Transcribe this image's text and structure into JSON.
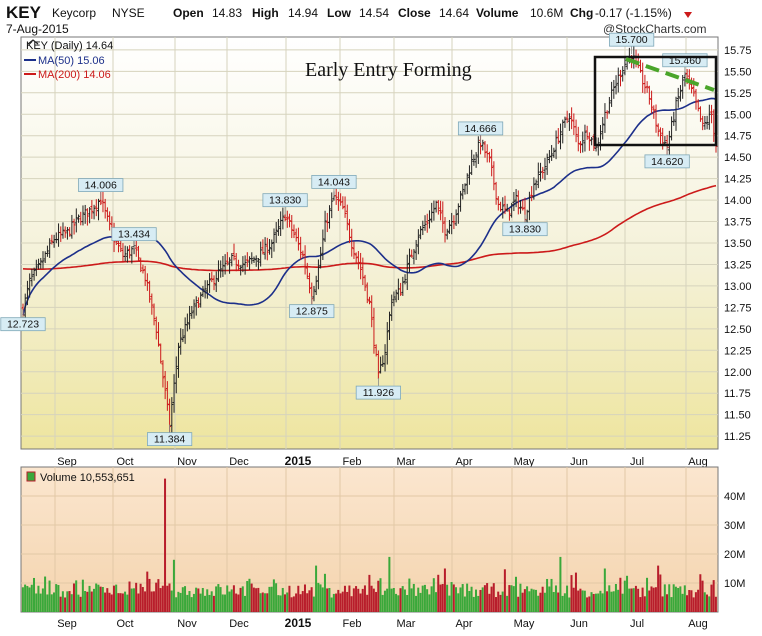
{
  "header": {
    "symbol": "KEY",
    "company": "Keycorp",
    "exchange": "NYSE",
    "date": "7-Aug-2015",
    "open_label": "Open",
    "open": "14.83",
    "high_label": "High",
    "high": "14.94",
    "low_label": "Low",
    "low": "14.54",
    "close_label": "Close",
    "close": "14.64",
    "volume_label": "Volume",
    "volume": "10.6M",
    "chg_label": "Chg",
    "chg": "-0.17 (-1.15%)",
    "watermark": "@StockCharts.com"
  },
  "legend": {
    "price": "KEY (Daily) 14.64",
    "ma50": "MA(50) 15.06",
    "ma200": "MA(200) 14.06",
    "volume": "Volume 10,553,651"
  },
  "annotation": "Early Entry Forming",
  "colors": {
    "up": "#222222",
    "down": "#cc1a1a",
    "ma50": "#1c2f8a",
    "ma200": "#cc1a1a",
    "trend": "#4aa52a",
    "vol_up": "#3aa83a",
    "vol_down": "#b81d2b"
  },
  "chart_data": [
    {
      "type": "candlestick",
      "title": "KEY (Daily) 14.64",
      "x_ticks": [
        "Sep",
        "Oct",
        "Nov",
        "Dec",
        "2015",
        "Feb",
        "Mar",
        "Apr",
        "May",
        "Jun",
        "Jul",
        "Aug"
      ],
      "y_ticks": [
        "15.75",
        "15.50",
        "15.25",
        "15.00",
        "14.75",
        "14.50",
        "14.25",
        "14.00",
        "13.75",
        "13.50",
        "13.25",
        "13.00",
        "12.75",
        "12.50",
        "12.25",
        "12.00",
        "11.75",
        "11.50",
        "11.25"
      ],
      "ylim": [
        11.1,
        15.9
      ],
      "grid": true,
      "legend_position": "top-left",
      "series": [
        {
          "name": "MA(50) 15.06",
          "type": "line"
        },
        {
          "name": "MA(200) 14.06",
          "type": "line"
        }
      ],
      "price_path": [
        [
          0,
          12.72
        ],
        [
          3,
          13.05
        ],
        [
          8,
          13.25
        ],
        [
          14,
          13.55
        ],
        [
          20,
          13.62
        ],
        [
          25,
          13.78
        ],
        [
          30,
          13.88
        ],
        [
          35,
          14.01
        ],
        [
          40,
          13.6
        ],
        [
          45,
          13.35
        ],
        [
          50,
          13.43
        ],
        [
          55,
          13.1
        ],
        [
          60,
          12.5
        ],
        [
          66,
          11.38
        ],
        [
          70,
          12.3
        ],
        [
          76,
          12.7
        ],
        [
          82,
          12.95
        ],
        [
          88,
          13.15
        ],
        [
          94,
          13.3
        ],
        [
          100,
          13.25
        ],
        [
          106,
          13.35
        ],
        [
          112,
          13.5
        ],
        [
          118,
          13.83
        ],
        [
          122,
          13.6
        ],
        [
          126,
          13.35
        ],
        [
          130,
          12.9
        ],
        [
          133,
          13.2
        ],
        [
          136,
          13.7
        ],
        [
          140,
          14.04
        ],
        [
          144,
          13.9
        ],
        [
          148,
          13.5
        ],
        [
          152,
          13.2
        ],
        [
          156,
          12.8
        ],
        [
          160,
          11.93
        ],
        [
          163,
          12.25
        ],
        [
          166,
          12.85
        ],
        [
          170,
          12.95
        ],
        [
          174,
          13.3
        ],
        [
          178,
          13.6
        ],
        [
          182,
          13.75
        ],
        [
          186,
          13.95
        ],
        [
          190,
          13.65
        ],
        [
          194,
          13.8
        ],
        [
          198,
          14.1
        ],
        [
          202,
          14.45
        ],
        [
          206,
          14.67
        ],
        [
          210,
          14.45
        ],
        [
          214,
          13.95
        ],
        [
          218,
          13.85
        ],
        [
          222,
          14.0
        ],
        [
          226,
          13.83
        ],
        [
          230,
          14.2
        ],
        [
          234,
          14.35
        ],
        [
          238,
          14.55
        ],
        [
          242,
          14.8
        ],
        [
          246,
          15.0
        ],
        [
          250,
          14.65
        ],
        [
          254,
          14.8
        ],
        [
          258,
          14.6
        ],
        [
          262,
          15.0
        ],
        [
          266,
          15.3
        ],
        [
          270,
          15.55
        ],
        [
          274,
          15.7
        ],
        [
          278,
          15.45
        ],
        [
          282,
          15.2
        ],
        [
          286,
          14.8
        ],
        [
          290,
          14.62
        ],
        [
          294,
          15.1
        ],
        [
          298,
          15.46
        ],
        [
          302,
          15.2
        ],
        [
          306,
          14.85
        ],
        [
          310,
          15.0
        ],
        [
          312,
          14.64
        ]
      ],
      "labels": [
        {
          "text": "12.723",
          "x": 0,
          "y": 12.723,
          "pos": "below"
        },
        {
          "text": "14.006",
          "x": 35,
          "y": 14.006,
          "pos": "above"
        },
        {
          "text": "13.434",
          "x": 50,
          "y": 13.434,
          "pos": "above"
        },
        {
          "text": "11.384",
          "x": 66,
          "y": 11.384,
          "pos": "below"
        },
        {
          "text": "13.830",
          "x": 118,
          "y": 13.83,
          "pos": "above"
        },
        {
          "text": "12.875",
          "x": 130,
          "y": 12.875,
          "pos": "below"
        },
        {
          "text": "14.043",
          "x": 140,
          "y": 14.043,
          "pos": "above"
        },
        {
          "text": "11.926",
          "x": 160,
          "y": 11.926,
          "pos": "below"
        },
        {
          "text": "14.666",
          "x": 206,
          "y": 14.666,
          "pos": "above"
        },
        {
          "text": "13.830",
          "x": 226,
          "y": 13.83,
          "pos": "below"
        },
        {
          "text": "15.700",
          "x": 274,
          "y": 15.7,
          "pos": "above"
        },
        {
          "text": "15.460",
          "x": 298,
          "y": 15.46,
          "pos": "above"
        },
        {
          "text": "14.620",
          "x": 290,
          "y": 14.62,
          "pos": "below"
        }
      ]
    },
    {
      "type": "bar",
      "title": "Volume 10,553,651",
      "x_ticks": [
        "Sep",
        "Oct",
        "Nov",
        "Dec",
        "2015",
        "Feb",
        "Mar",
        "Apr",
        "May",
        "Jun",
        "Jul",
        "Aug"
      ],
      "y_ticks": [
        "40M",
        "30M",
        "20M",
        "10M"
      ],
      "ylim": [
        0,
        50
      ],
      "unit": "M",
      "spikes": [
        [
          64,
          46
        ],
        [
          68,
          18
        ],
        [
          132,
          16
        ],
        [
          165,
          19
        ],
        [
          190,
          15
        ],
        [
          242,
          19
        ],
        [
          262,
          15
        ],
        [
          286,
          16
        ],
        [
          311,
          11
        ]
      ]
    }
  ]
}
